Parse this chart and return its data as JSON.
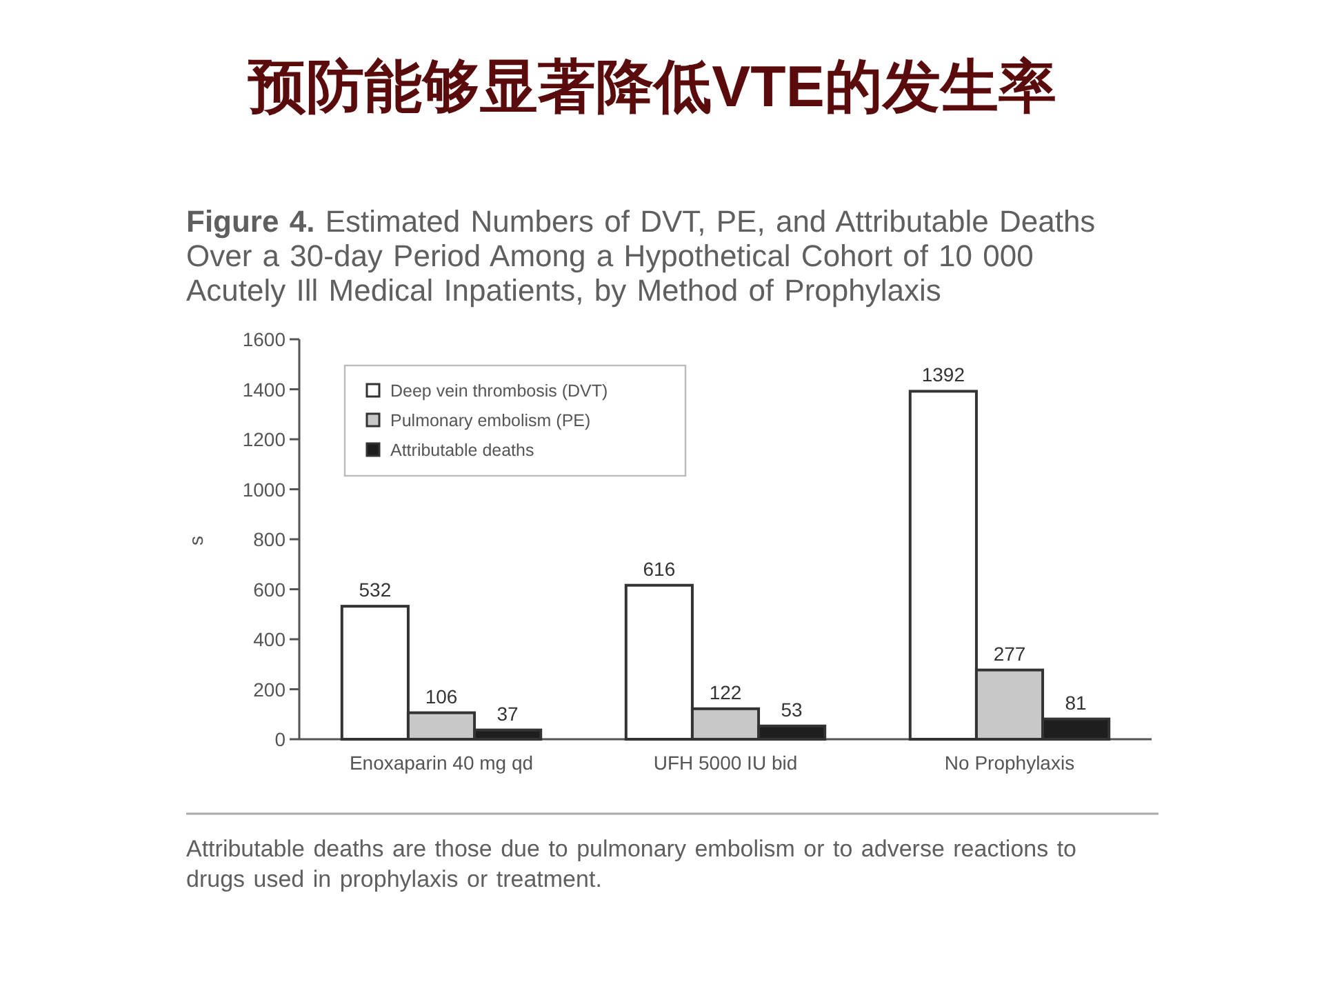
{
  "chart_data": {
    "type": "bar",
    "title": "预防能够显著降低VTE的发生率",
    "subtitle": "Figure 4. Estimated Numbers of DVT, PE, and Attributable Deaths Over a 30-day Period Among a Hypothetical Cohort of 10 000 Acutely Ill Medical Inpatients, by Method of Prophylaxis",
    "ylabel": "s",
    "categories": [
      "Enoxaparin 40 mg qd",
      "UFH 5000 IU bid",
      "No Prophylaxis"
    ],
    "series": [
      {
        "name": "Deep vein thrombosis (DVT)",
        "color": "#ffffff",
        "values": [
          532,
          616,
          1392
        ]
      },
      {
        "name": "Pulmonary embolism (PE)",
        "color": "#c8c8c8",
        "values": [
          106,
          122,
          277
        ]
      },
      {
        "name": "Attributable deaths",
        "color": "#1e1e1e",
        "values": [
          37,
          53,
          81
        ]
      }
    ],
    "ylim": [
      0,
      1600
    ],
    "yticks": [
      0,
      200,
      400,
      600,
      800,
      1000,
      1200,
      1400,
      1600
    ],
    "data_labels": true,
    "legend": "top left",
    "annotations": [
      "Attributable deaths are those due to pulmonary embolism or to adverse reactions to drugs used in prophylaxis or treatment."
    ]
  }
}
